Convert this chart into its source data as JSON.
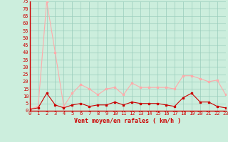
{
  "x": [
    0,
    1,
    2,
    3,
    4,
    5,
    6,
    7,
    8,
    9,
    10,
    11,
    12,
    13,
    14,
    15,
    16,
    17,
    18,
    19,
    20,
    21,
    22,
    23
  ],
  "y_mean": [
    1,
    2,
    12,
    4,
    2,
    4,
    5,
    3,
    4,
    4,
    6,
    4,
    6,
    5,
    5,
    5,
    4,
    3,
    9,
    12,
    6,
    6,
    3,
    2
  ],
  "y_gust": [
    1,
    3,
    75,
    40,
    3,
    12,
    18,
    15,
    11,
    15,
    16,
    11,
    19,
    16,
    16,
    16,
    16,
    15,
    24,
    24,
    22,
    20,
    21,
    11
  ],
  "xlabel": "Vent moyen/en rafales ( km/h )",
  "ylim": [
    0,
    75
  ],
  "yticks": [
    0,
    5,
    10,
    15,
    20,
    25,
    30,
    35,
    40,
    45,
    50,
    55,
    60,
    65,
    70,
    75
  ],
  "xticks": [
    0,
    1,
    2,
    3,
    4,
    5,
    6,
    7,
    8,
    9,
    10,
    11,
    12,
    13,
    14,
    15,
    16,
    17,
    18,
    19,
    20,
    21,
    22,
    23
  ],
  "color_mean": "#cc0000",
  "color_gust": "#ffaaaa",
  "bg_color": "#cceedd",
  "grid_color": "#99ccbb",
  "marker": "s",
  "marker_size": 2,
  "line_width": 0.8,
  "tick_fontsize": 5,
  "xlabel_fontsize": 6
}
